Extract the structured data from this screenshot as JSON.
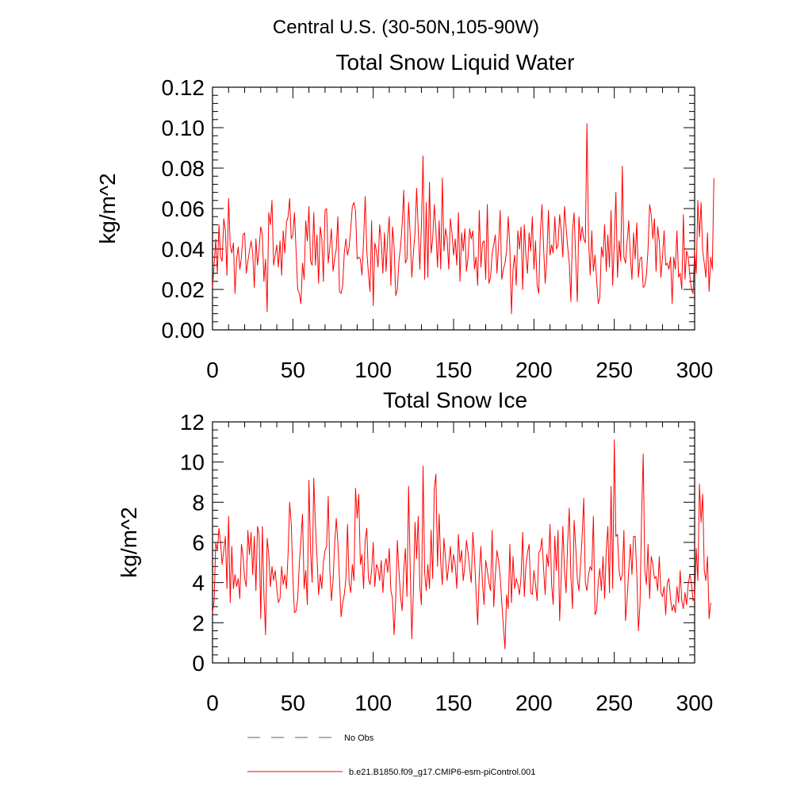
{
  "figure": {
    "suptitle": "Central U.S. (30-50N,105-90W)"
  },
  "legend": {
    "entries": [
      {
        "label": "No Obs",
        "style": "dashed",
        "color": "#5a5a8c"
      },
      {
        "label": "b.e21.B1850.f09_g17.CMIP6-esm-piControl.001",
        "style": "solid",
        "color": "#ff0000"
      }
    ]
  },
  "chart_data": [
    {
      "type": "line",
      "title": "Total Snow Liquid Water",
      "xlabel": "",
      "ylabel": "kg/m^2",
      "xlim": [
        0,
        300
      ],
      "ylim": [
        0,
        0.12
      ],
      "xticks": [
        0,
        50,
        100,
        150,
        200,
        250,
        300
      ],
      "xtick_labels": [
        "0",
        "50",
        "100",
        "150",
        "200",
        "250",
        "300"
      ],
      "yticks": [
        0,
        0.02,
        0.04,
        0.06,
        0.08,
        0.1,
        0.12
      ],
      "ytick_labels": [
        "0.00",
        "0.02",
        "0.04",
        "0.06",
        "0.08",
        "0.10",
        "0.12"
      ],
      "series": [
        {
          "name": "b.e21.B1850.f09_g17.CMIP6-esm-piControl.001",
          "color": "#ff0000",
          "x_start": 0,
          "x_step": 1,
          "values": [
            0.021,
            0.032,
            0.045,
            0.028,
            0.052,
            0.036,
            0.034,
            0.055,
            0.049,
            0.027,
            0.065,
            0.042,
            0.038,
            0.043,
            0.018,
            0.035,
            0.041,
            0.03,
            0.036,
            0.047,
            0.048,
            0.028,
            0.034,
            0.039,
            0.044,
            0.038,
            0.021,
            0.045,
            0.032,
            0.04,
            0.051,
            0.047,
            0.024,
            0.035,
            0.009,
            0.058,
            0.052,
            0.064,
            0.032,
            0.037,
            0.042,
            0.031,
            0.044,
            0.027,
            0.049,
            0.038,
            0.053,
            0.056,
            0.065,
            0.045,
            0.047,
            0.058,
            0.039,
            0.02,
            0.018,
            0.013,
            0.033,
            0.025,
            0.054,
            0.044,
            0.061,
            0.034,
            0.032,
            0.058,
            0.032,
            0.047,
            0.023,
            0.051,
            0.045,
            0.024,
            0.059,
            0.06,
            0.033,
            0.041,
            0.05,
            0.029,
            0.035,
            0.04,
            0.056,
            0.019,
            0.018,
            0.022,
            0.038,
            0.045,
            0.037,
            0.041,
            0.05,
            0.061,
            0.063,
            0.059,
            0.035,
            0.036,
            0.035,
            0.027,
            0.044,
            0.066,
            0.039,
            0.028,
            0.019,
            0.054,
            0.012,
            0.043,
            0.039,
            0.031,
            0.052,
            0.044,
            0.028,
            0.048,
            0.029,
            0.046,
            0.056,
            0.022,
            0.051,
            0.041,
            0.017,
            0.02,
            0.034,
            0.041,
            0.052,
            0.069,
            0.033,
            0.035,
            0.063,
            0.047,
            0.026,
            0.038,
            0.048,
            0.07,
            0.05,
            0.03,
            0.052,
            0.086,
            0.025,
            0.063,
            0.026,
            0.073,
            0.038,
            0.045,
            0.062,
            0.049,
            0.031,
            0.054,
            0.03,
            0.075,
            0.039,
            0.05,
            0.045,
            0.03,
            0.055,
            0.048,
            0.037,
            0.045,
            0.032,
            0.058,
            0.024,
            0.048,
            0.039,
            0.05,
            0.029,
            0.036,
            0.05,
            0.045,
            0.049,
            0.03,
            0.036,
            0.022,
            0.059,
            0.031,
            0.043,
            0.044,
            0.025,
            0.062,
            0.023,
            0.026,
            0.038,
            0.042,
            0.047,
            0.028,
            0.042,
            0.059,
            0.025,
            0.03,
            0.033,
            0.039,
            0.056,
            0.041,
            0.008,
            0.03,
            0.037,
            0.022,
            0.049,
            0.04,
            0.051,
            0.02,
            0.052,
            0.037,
            0.028,
            0.048,
            0.039,
            0.056,
            0.03,
            0.044,
            0.022,
            0.018,
            0.048,
            0.062,
            0.041,
            0.023,
            0.035,
            0.059,
            0.037,
            0.042,
            0.038,
            0.056,
            0.04,
            0.042,
            0.057,
            0.049,
            0.036,
            0.061,
            0.051,
            0.041,
            0.033,
            0.014,
            0.049,
            0.058,
            0.035,
            0.014,
            0.056,
            0.044,
            0.051,
            0.045,
            0.043,
            0.102,
            0.044,
            0.027,
            0.049,
            0.029,
            0.037,
            0.025,
            0.013,
            0.016,
            0.041,
            0.036,
            0.052,
            0.029,
            0.047,
            0.031,
            0.059,
            0.022,
            0.043,
            0.068,
            0.026,
            0.044,
            0.034,
            0.081,
            0.036,
            0.033,
            0.044,
            0.054,
            0.036,
            0.025,
            0.048,
            0.035,
            0.053,
            0.026,
            0.035,
            0.036,
            0.021,
            0.022,
            0.027,
            0.04,
            0.062,
            0.057,
            0.045,
            0.055,
            0.029,
            0.051,
            0.044,
            0.026,
            0.036,
            0.049,
            0.032,
            0.033,
            0.03,
            0.036,
            0.013,
            0.036,
            0.03,
            0.049,
            0.026,
            0.028,
            0.02,
            0.057,
            0.025,
            0.039,
            0.036,
            0.027,
            0.02,
            0.018,
            0.039,
            0.028,
            0.064,
            0.046,
            0.063,
            0.039,
            0.033,
            0.026,
            0.048,
            0.019,
            0.036,
            0.03,
            0.075
          ]
        }
      ]
    },
    {
      "type": "line",
      "title": "Total Snow Ice",
      "xlabel": "",
      "ylabel": "kg/m^2",
      "xlim": [
        0,
        300
      ],
      "ylim": [
        0,
        12
      ],
      "xticks": [
        0,
        50,
        100,
        150,
        200,
        250,
        300
      ],
      "xtick_labels": [
        "0",
        "50",
        "100",
        "150",
        "200",
        "250",
        "300"
      ],
      "yticks": [
        0,
        2,
        4,
        6,
        8,
        10,
        12
      ],
      "ytick_labels": [
        "0",
        "2",
        "4",
        "6",
        "8",
        "10",
        "12"
      ],
      "series": [
        {
          "name": "b.e21.B1850.f09_g17.CMIP6-esm-piControl.001",
          "color": "#ff0000",
          "x_start": 0,
          "x_step": 1,
          "values": [
            2.5,
            3.1,
            6.0,
            5.6,
            6.7,
            6.0,
            4.9,
            5.6,
            6.3,
            3.7,
            7.3,
            3.0,
            5.8,
            3.7,
            4.4,
            3.8,
            4.2,
            3.2,
            5.9,
            5.3,
            4.2,
            3.8,
            6.6,
            5.4,
            6.5,
            4.4,
            6.3,
            3.6,
            6.8,
            6.4,
            2.2,
            6.8,
            3.4,
            1.4,
            6.2,
            5.4,
            3.8,
            4.8,
            4.1,
            4.6,
            3.7,
            3.0,
            3.2,
            4.8,
            3.9,
            4.4,
            3.7,
            5.4,
            8.0,
            6.9,
            4.2,
            2.5,
            2.6,
            3.2,
            4.9,
            6.1,
            7.4,
            3.7,
            4.6,
            2.9,
            9.1,
            5.6,
            4.0,
            9.2,
            6.9,
            5.3,
            3.4,
            4.4,
            3.7,
            5.0,
            5.6,
            5.8,
            8.3,
            4.6,
            3.1,
            4.1,
            5.9,
            7.2,
            6.0,
            4.2,
            2.3,
            3.0,
            3.4,
            4.2,
            6.9,
            4.0,
            3.5,
            4.9,
            4.1,
            8.7,
            7.2,
            8.4,
            4.9,
            5.4,
            3.7,
            6.1,
            6.7,
            4.2,
            3.9,
            4.6,
            6.0,
            3.8,
            4.9,
            4.7,
            4.1,
            5.1,
            3.5,
            4.8,
            5.2,
            4.5,
            5.7,
            3.6,
            3.2,
            1.4,
            3.2,
            6.1,
            4.6,
            3.3,
            2.6,
            4.6,
            5.7,
            3.3,
            8.8,
            4.8,
            1.2,
            3.6,
            7.0,
            5.2,
            7.3,
            3.8,
            2.9,
            9.8,
            4.5,
            3.6,
            4.9,
            3.7,
            6.6,
            4.2,
            8.7,
            9.4,
            4.8,
            7.4,
            5.0,
            3.9,
            6.2,
            5.2,
            4.1,
            4.9,
            5.8,
            4.5,
            5.4,
            4.9,
            3.7,
            6.4,
            5.0,
            5.6,
            4.1,
            4.8,
            6.1,
            5.5,
            4.7,
            4.0,
            6.5,
            5.3,
            3.5,
            1.9,
            4.4,
            5.8,
            3.9,
            2.9,
            5.1,
            4.6,
            4.0,
            3.6,
            6.6,
            2.8,
            4.4,
            5.6,
            5.1,
            4.3,
            3.0,
            1.8,
            0.7,
            3.4,
            2.7,
            5.9,
            3.0,
            5.3,
            3.7,
            4.2,
            3.9,
            3.4,
            4.3,
            6.5,
            3.3,
            4.8,
            5.5,
            5.9,
            3.5,
            3.4,
            4.6,
            3.9,
            3.1,
            5.5,
            5.6,
            6.2,
            4.7,
            3.4,
            5.4,
            4.8,
            6.9,
            3.9,
            2.9,
            6.3,
            4.6,
            6.6,
            2.1,
            4.3,
            6.8,
            4.6,
            3.5,
            6.0,
            7.7,
            4.3,
            2.7,
            7.1,
            5.8,
            4.2,
            3.6,
            4.9,
            6.3,
            8.2,
            4.0,
            3.6,
            4.4,
            4.8,
            4.6,
            7.3,
            2.4,
            2.6,
            4.0,
            4.7,
            3.6,
            5.3,
            3.2,
            5.6,
            6.8,
            3.5,
            8.8,
            3.7,
            11.1,
            6.3,
            6.4,
            4.6,
            4.1,
            4.4,
            6.6,
            2.1,
            3.2,
            4.6,
            5.9,
            4.4,
            6.3,
            6.3,
            4.5,
            1.6,
            2.9,
            7.3,
            10.4,
            4.6,
            3.9,
            5.9,
            3.2,
            5.3,
            4.9,
            4.2,
            4.3,
            3.6,
            5.3,
            3.5,
            3.3,
            3.8,
            2.4,
            4.0,
            4.2,
            3.2,
            2.6,
            2.9,
            2.5,
            3.8,
            3.0,
            4.6,
            3.1,
            2.7,
            3.5,
            2.9,
            3.9,
            4.4,
            4.0,
            3.1,
            3.2,
            5.7,
            4.1,
            8.9,
            7.0,
            8.4,
            4.6,
            4.1,
            5.3,
            2.2,
            3.0
          ]
        }
      ]
    }
  ]
}
